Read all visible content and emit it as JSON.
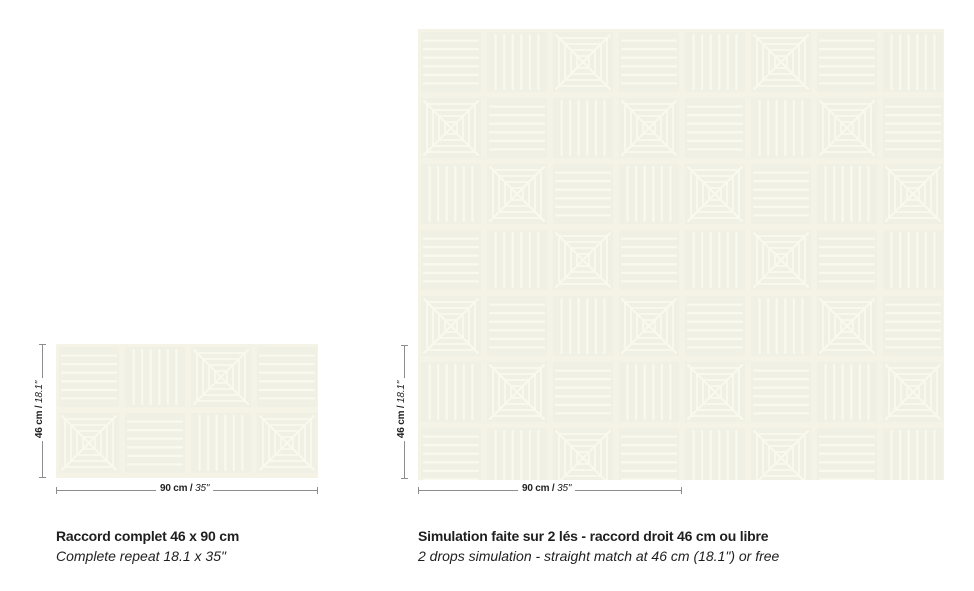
{
  "colors": {
    "background": "#f4f3e6",
    "motif": "#fbfbef",
    "shade": "#e9ebe0"
  },
  "small": {
    "width_label": "90 cm /",
    "width_label_italic": "35\"",
    "height_label": "46 cm /",
    "height_label_italic": "18.1\"",
    "caption_fr": "Raccord complet 46 x 90 cm",
    "caption_en": "Complete repeat 18.1 x 35\""
  },
  "large": {
    "width_label": "90 cm /",
    "width_label_italic": "35\"",
    "height_label": "46 cm /",
    "height_label_italic": "18.1\"",
    "caption_fr": "Simulation faite sur 2 lés - raccord droit 46 cm ou libre",
    "caption_en": "2 drops simulation - straight match at 46 cm (18.1\") or free"
  }
}
